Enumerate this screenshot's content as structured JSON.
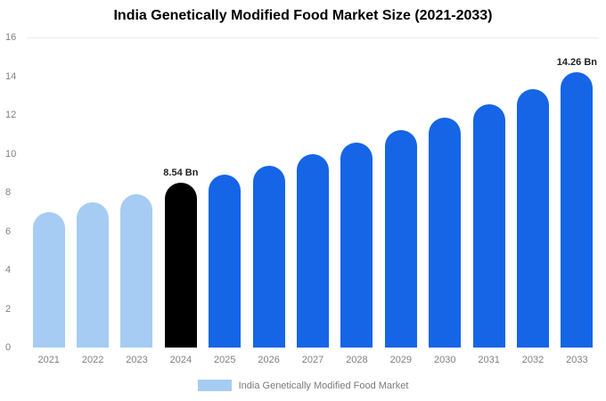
{
  "chart_data": {
    "type": "bar",
    "title": "India Genetically Modified Food Market Size (2021-2033)",
    "xlabel": "",
    "ylabel": "",
    "ylim": [
      0,
      16
    ],
    "y_ticks": [
      0,
      2,
      4,
      6,
      8,
      10,
      12,
      14,
      16
    ],
    "grid": "top-border-only",
    "legend": {
      "position": "bottom-center",
      "label": "India Genetically Modified Food Market",
      "swatch_color": "#a6ccf3"
    },
    "colors": {
      "past": "#a6ccf3",
      "current": "#000000",
      "forecast": "#1565e6"
    },
    "categories": [
      "2021",
      "2022",
      "2023",
      "2024",
      "2025",
      "2026",
      "2027",
      "2028",
      "2029",
      "2030",
      "2031",
      "2032",
      "2033"
    ],
    "values": [
      7.0,
      7.5,
      7.95,
      8.54,
      8.95,
      9.4,
      10.0,
      10.6,
      11.25,
      11.9,
      12.6,
      13.35,
      14.26
    ],
    "points": [
      {
        "year": "2021",
        "value": 7.0,
        "segment": "past"
      },
      {
        "year": "2022",
        "value": 7.5,
        "segment": "past"
      },
      {
        "year": "2023",
        "value": 7.95,
        "segment": "past"
      },
      {
        "year": "2024",
        "value": 8.54,
        "segment": "current",
        "label": "8.54 Bn"
      },
      {
        "year": "2025",
        "value": 8.95,
        "segment": "forecast"
      },
      {
        "year": "2026",
        "value": 9.4,
        "segment": "forecast"
      },
      {
        "year": "2027",
        "value": 10.0,
        "segment": "forecast"
      },
      {
        "year": "2028",
        "value": 10.6,
        "segment": "forecast"
      },
      {
        "year": "2029",
        "value": 11.25,
        "segment": "forecast"
      },
      {
        "year": "2030",
        "value": 11.9,
        "segment": "forecast"
      },
      {
        "year": "2031",
        "value": 12.6,
        "segment": "forecast"
      },
      {
        "year": "2032",
        "value": 13.35,
        "segment": "forecast"
      },
      {
        "year": "2033",
        "value": 14.26,
        "segment": "forecast",
        "label": "14.26 Bn"
      }
    ]
  }
}
